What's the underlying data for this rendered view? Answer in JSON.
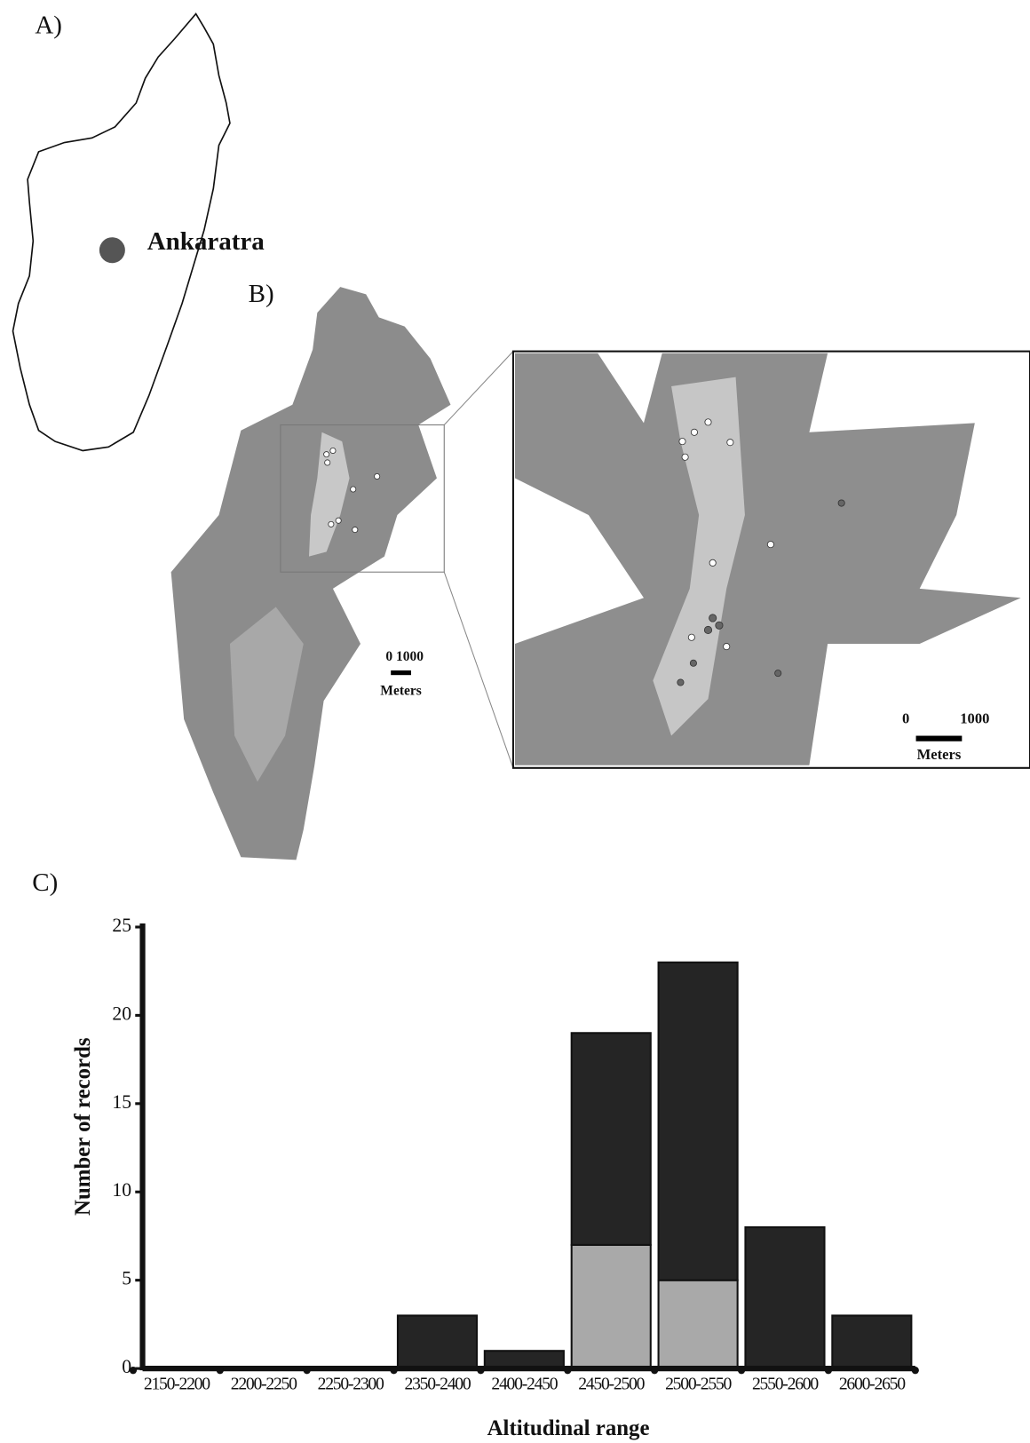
{
  "panels": {
    "a_label": "A)",
    "site": "Ankaratra",
    "b_label": "B)",
    "scale_small": {
      "label": "0 1000",
      "unit": "Meters"
    },
    "scale_inset": {
      "zero": "0",
      "max": "1000",
      "unit": "Meters"
    },
    "c_label": "C)"
  },
  "chart_data": {
    "type": "stacked_bar",
    "xlabel": "Altitudinal range",
    "ylabel": "Number of records",
    "categories": [
      "2150-2200",
      "2200-2250",
      "2250-2300",
      "2350-2400",
      "2400-2450",
      "2450-2500",
      "2500-2550",
      "2550-2600",
      "2600-2650"
    ],
    "series": [
      {
        "color": "#a9a9a9",
        "values": [
          0,
          0,
          0,
          0,
          0,
          7,
          5,
          0,
          0
        ]
      },
      {
        "color": "#252525",
        "values": [
          0,
          0,
          0,
          3,
          1,
          12,
          18,
          8,
          3
        ]
      }
    ],
    "ylim": [
      0,
      25
    ],
    "yticks": [
      0,
      5,
      10,
      15,
      20,
      25
    ]
  }
}
